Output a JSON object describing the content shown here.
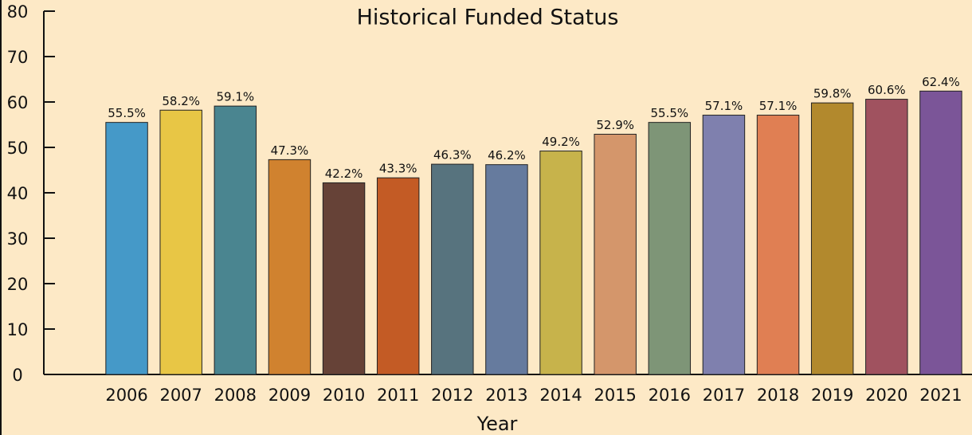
{
  "chart_data": {
    "type": "bar",
    "title": "Historical Funded Status",
    "x_label": "Year",
    "categories": [
      "2006",
      "2007",
      "2008",
      "2009",
      "2010",
      "2011",
      "2012",
      "2013",
      "2014",
      "2015",
      "2016",
      "2017",
      "2018",
      "2019",
      "2020",
      "2021"
    ],
    "values": [
      55.5,
      58.2,
      59.1,
      47.3,
      42.2,
      43.3,
      46.3,
      46.2,
      49.2,
      52.9,
      55.5,
      57.1,
      57.1,
      59.8,
      60.6,
      62.4
    ],
    "value_labels": [
      "55.5%",
      "58.2%",
      "59.1%",
      "47.3%",
      "42.2%",
      "43.3%",
      "46.3%",
      "46.2%",
      "49.2%",
      "52.9%",
      "55.5%",
      "57.1%",
      "57.1%",
      "59.8%",
      "60.6%",
      "62.4%"
    ],
    "colors": [
      "#4599c8",
      "#e8c645",
      "#4a8590",
      "#d0822f",
      "#664237",
      "#c35b25",
      "#57737e",
      "#667b9e",
      "#c7b34b",
      "#d4966b",
      "#7e9577",
      "#7f80ae",
      "#e07f53",
      "#b2892d",
      "#a0525f",
      "#7b5598"
    ],
    "ylim": [
      0,
      80
    ],
    "yticks": [
      0,
      10,
      20,
      30,
      40,
      50,
      60,
      70,
      80
    ]
  }
}
